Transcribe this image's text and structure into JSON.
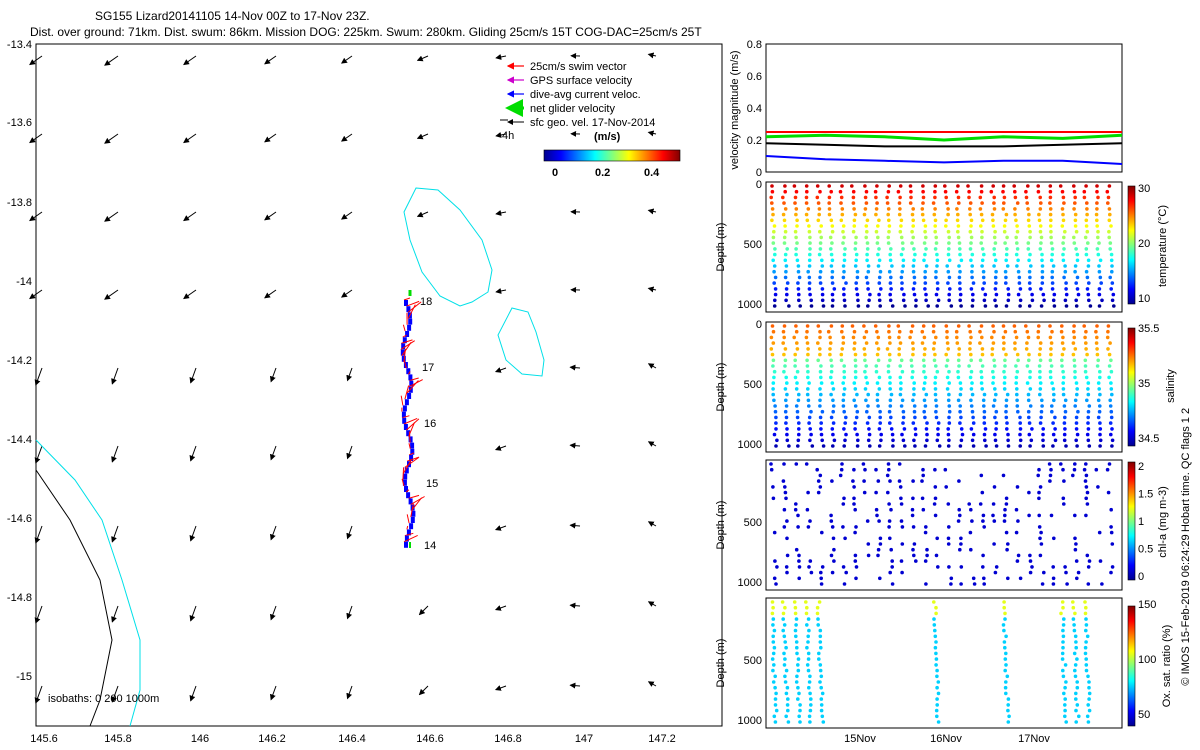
{
  "header": {
    "title": "SG155 Lizard20141105 14-Nov 00Z to 17-Nov 23Z.",
    "subtitle": "Dist. over ground: 71km. Dist. swum: 86km. Mission DOG: 225km. Swum: 280km. Gliding 25cm/s 15T COG-DAC=25cm/s 25T"
  },
  "map": {
    "x_ticks": [
      "145.6",
      "145.8",
      "146",
      "146.2",
      "146.4",
      "146.6",
      "146.8",
      "147",
      "147.2"
    ],
    "y_ticks": [
      "-13.4",
      "-13.6",
      "-13.8",
      "-14",
      "-14.2",
      "-14.4",
      "-14.6",
      "-14.8",
      "-15"
    ],
    "legend": [
      {
        "label": "25cm/s swim vector",
        "color": "#ff0000"
      },
      {
        "label": "GPS surface velocity",
        "color": "#cc00cc"
      },
      {
        "label": "dive-avg current veloc.",
        "color": "#0000ff"
      },
      {
        "label": "net glider velocity",
        "color": "#00dd00"
      },
      {
        "label": "sfc geo. vel. 17-Nov-2014",
        "color": "#000000"
      }
    ],
    "scale_label": "4h",
    "colorbar": {
      "title": "(m/s)",
      "ticks": [
        "0",
        "0.2",
        "0.4"
      ]
    },
    "day_labels": [
      "18",
      "17",
      "16",
      "15",
      "14"
    ],
    "isobath_label": "isobaths: 0   200  1000m"
  },
  "chart_data": [
    {
      "type": "line",
      "ylabel": "velocity magnitude (m/s)",
      "ylim": [
        0,
        0.8
      ],
      "y_ticks": [
        "0.8",
        "0.6",
        "0.4",
        "0.2",
        "0"
      ],
      "series": [
        {
          "color": "#ff0000",
          "values": [
            0.25,
            0.25,
            0.25,
            0.25,
            0.25,
            0.25,
            0.25
          ]
        },
        {
          "color": "#00dd00",
          "values": [
            0.22,
            0.23,
            0.22,
            0.2,
            0.22,
            0.21,
            0.23
          ]
        },
        {
          "color": "#000000",
          "values": [
            0.18,
            0.17,
            0.16,
            0.16,
            0.16,
            0.17,
            0.18
          ]
        },
        {
          "color": "#0000ff",
          "values": [
            0.1,
            0.08,
            0.07,
            0.06,
            0.07,
            0.07,
            0.05
          ]
        }
      ]
    },
    {
      "type": "scatter",
      "ylabel": "Depth (m)",
      "y_ticks": [
        "0",
        "500",
        "1000"
      ],
      "cbar_label": "temperature (°C)",
      "cbar_ticks": [
        "30",
        "20",
        "10"
      ]
    },
    {
      "type": "scatter",
      "ylabel": "Depth (m)",
      "y_ticks": [
        "0",
        "500",
        "1000"
      ],
      "cbar_label": "salinity",
      "cbar_ticks": [
        "35.5",
        "35",
        "34.5"
      ]
    },
    {
      "type": "scatter",
      "ylabel": "Depth (m)",
      "y_ticks": [
        "",
        "500",
        "1000"
      ],
      "cbar_label": "chl-a (mg m-3)",
      "cbar_ticks": [
        "2",
        "1.5",
        "1",
        "0.5",
        "0"
      ]
    },
    {
      "type": "scatter",
      "ylabel": "Depth (m)",
      "y_ticks": [
        "",
        "500",
        "1000"
      ],
      "cbar_label": "Ox. sat. ratio (%)",
      "cbar_ticks": [
        "150",
        "100",
        "50"
      ],
      "x_ticks": [
        "15Nov",
        "16Nov",
        "17Nov"
      ]
    }
  ],
  "qc_note": "Hobart time. QC flags 1  2",
  "credit": "© IMOS 15-Feb-2019 06:24:29"
}
